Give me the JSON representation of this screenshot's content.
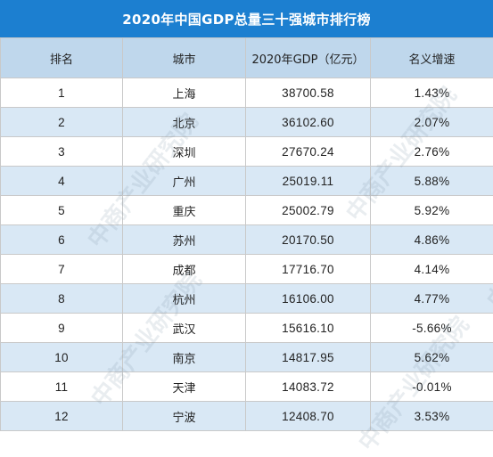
{
  "title": "2020年中国GDP总量三十强城市排行榜",
  "headers": [
    "排名",
    "城市",
    "2020年GDP（亿元）",
    "名义增速"
  ],
  "rows": [
    [
      "1",
      "上海",
      "38700.58",
      "1.43%"
    ],
    [
      "2",
      "北京",
      "36102.60",
      "2.07%"
    ],
    [
      "3",
      "深圳",
      "27670.24",
      "2.76%"
    ],
    [
      "4",
      "广州",
      "25019.11",
      "5.88%"
    ],
    [
      "5",
      "重庆",
      "25002.79",
      "5.92%"
    ],
    [
      "6",
      "苏州",
      "20170.50",
      "4.86%"
    ],
    [
      "7",
      "成都",
      "17716.70",
      "4.14%"
    ],
    [
      "8",
      "杭州",
      "16106.00",
      "4.77%"
    ],
    [
      "9",
      "武汉",
      "15616.10",
      "-5.66%"
    ],
    [
      "10",
      "南京",
      "14817.95",
      "5.62%"
    ],
    [
      "11",
      "天津",
      "14083.72",
      "-0.01%"
    ],
    [
      "12",
      "宁波",
      "12408.70",
      "3.53%"
    ]
  ],
  "watermark": "中商产业研究院",
  "colors": {
    "title_bg": "#1c7fd0",
    "header_bg": "#bfd7ec",
    "stripe_bg": "#d9e8f5"
  }
}
